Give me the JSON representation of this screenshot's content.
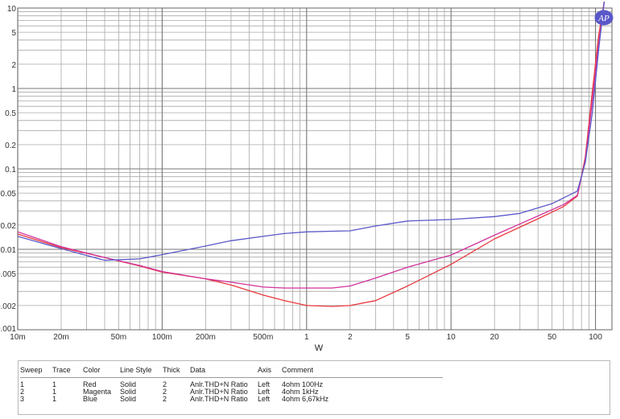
{
  "chart_data": {
    "type": "line",
    "xlabel": "W",
    "ylabel": "",
    "x_scale": "log",
    "y_scale": "log",
    "xlim": [
      0.01,
      130
    ],
    "ylim": [
      0.001,
      10
    ],
    "grid": true,
    "x_ticks": [
      {
        "value": 0.01,
        "label": "10m"
      },
      {
        "value": 0.02,
        "label": "20m"
      },
      {
        "value": 0.05,
        "label": "50m"
      },
      {
        "value": 0.1,
        "label": "100m"
      },
      {
        "value": 0.2,
        "label": "200m"
      },
      {
        "value": 0.5,
        "label": "500m"
      },
      {
        "value": 1,
        "label": "1"
      },
      {
        "value": 2,
        "label": "2"
      },
      {
        "value": 5,
        "label": "5"
      },
      {
        "value": 10,
        "label": "10"
      },
      {
        "value": 20,
        "label": "20"
      },
      {
        "value": 50,
        "label": "50"
      },
      {
        "value": 100,
        "label": "100"
      }
    ],
    "y_ticks": [
      {
        "value": 10,
        "label": "10"
      },
      {
        "value": 5,
        "label": "5"
      },
      {
        "value": 2,
        "label": "2"
      },
      {
        "value": 1,
        "label": "1"
      },
      {
        "value": 0.5,
        "label": "0.5"
      },
      {
        "value": 0.2,
        "label": "0.2"
      },
      {
        "value": 0.1,
        "label": "0.1"
      },
      {
        "value": 0.05,
        "label": "0.05"
      },
      {
        "value": 0.02,
        "label": "0.02"
      },
      {
        "value": 0.01,
        "label": "0.01"
      },
      {
        "value": 0.005,
        "label": "0.005"
      },
      {
        "value": 0.002,
        "label": "0.002"
      },
      {
        "value": 0.001,
        "label": "0.001"
      }
    ],
    "series": [
      {
        "color": "#e8383d",
        "points": [
          [
            0.01,
            0.0155
          ],
          [
            0.02,
            0.0105
          ],
          [
            0.04,
            0.0079
          ],
          [
            0.07,
            0.0062
          ],
          [
            0.1,
            0.0052
          ],
          [
            0.2,
            0.0043
          ],
          [
            0.3,
            0.0036
          ],
          [
            0.5,
            0.0027
          ],
          [
            0.7,
            0.0023
          ],
          [
            1,
            0.002
          ],
          [
            1.5,
            0.00195
          ],
          [
            2,
            0.002
          ],
          [
            3,
            0.0023
          ],
          [
            5,
            0.0035
          ],
          [
            10,
            0.0065
          ],
          [
            20,
            0.0135
          ],
          [
            40,
            0.024
          ],
          [
            60,
            0.034
          ],
          [
            75,
            0.046
          ],
          [
            85,
            0.14
          ],
          [
            95,
            0.9
          ],
          [
            105,
            4.5
          ],
          [
            115,
            12
          ]
        ]
      },
      {
        "color": "#d2339c",
        "points": [
          [
            0.01,
            0.0165
          ],
          [
            0.02,
            0.0108
          ],
          [
            0.04,
            0.0079
          ],
          [
            0.07,
            0.0063
          ],
          [
            0.1,
            0.0053
          ],
          [
            0.2,
            0.0043
          ],
          [
            0.3,
            0.0039
          ],
          [
            0.5,
            0.0034
          ],
          [
            0.7,
            0.0033
          ],
          [
            1,
            0.0033
          ],
          [
            1.5,
            0.0033
          ],
          [
            2,
            0.0035
          ],
          [
            3,
            0.0044
          ],
          [
            5,
            0.006
          ],
          [
            10,
            0.0085
          ],
          [
            20,
            0.015
          ],
          [
            40,
            0.026
          ],
          [
            60,
            0.036
          ],
          [
            75,
            0.047
          ],
          [
            85,
            0.13
          ],
          [
            95,
            0.7
          ],
          [
            105,
            3.5
          ],
          [
            115,
            12
          ]
        ]
      },
      {
        "color": "#5a58c8",
        "points": [
          [
            0.01,
            0.0145
          ],
          [
            0.02,
            0.0102
          ],
          [
            0.04,
            0.0073
          ],
          [
            0.07,
            0.0076
          ],
          [
            0.1,
            0.0086
          ],
          [
            0.2,
            0.011
          ],
          [
            0.3,
            0.0128
          ],
          [
            0.5,
            0.0145
          ],
          [
            0.7,
            0.0157
          ],
          [
            1,
            0.0165
          ],
          [
            1.5,
            0.0168
          ],
          [
            2,
            0.017
          ],
          [
            3,
            0.0195
          ],
          [
            5,
            0.0225
          ],
          [
            10,
            0.0235
          ],
          [
            20,
            0.0255
          ],
          [
            30,
            0.028
          ],
          [
            50,
            0.037
          ],
          [
            75,
            0.053
          ],
          [
            85,
            0.12
          ],
          [
            95,
            0.5
          ],
          [
            105,
            3
          ],
          [
            115,
            12
          ]
        ]
      }
    ]
  },
  "legend": {
    "headers": [
      "Sweep",
      "Trace",
      "Color",
      "Line Style",
      "Thick",
      "Data",
      "Axis",
      "Comment"
    ],
    "rows": [
      [
        "1",
        "1",
        "Red",
        "Solid",
        "2",
        "Anlr.THD+N Ratio",
        "Left",
        "4ohm 100Hz"
      ],
      [
        "2",
        "1",
        "Magenta",
        "Solid",
        "2",
        "Anlr.THD+N Ratio",
        "Left",
        "4ohm 1kHz"
      ],
      [
        "3",
        "1",
        "Blue",
        "Solid",
        "2",
        "Anlr.THD+N Ratio",
        "Left",
        "4ohm 6,67kHz"
      ]
    ]
  },
  "logo": {
    "text": "AP",
    "color": "#5a58c8"
  }
}
